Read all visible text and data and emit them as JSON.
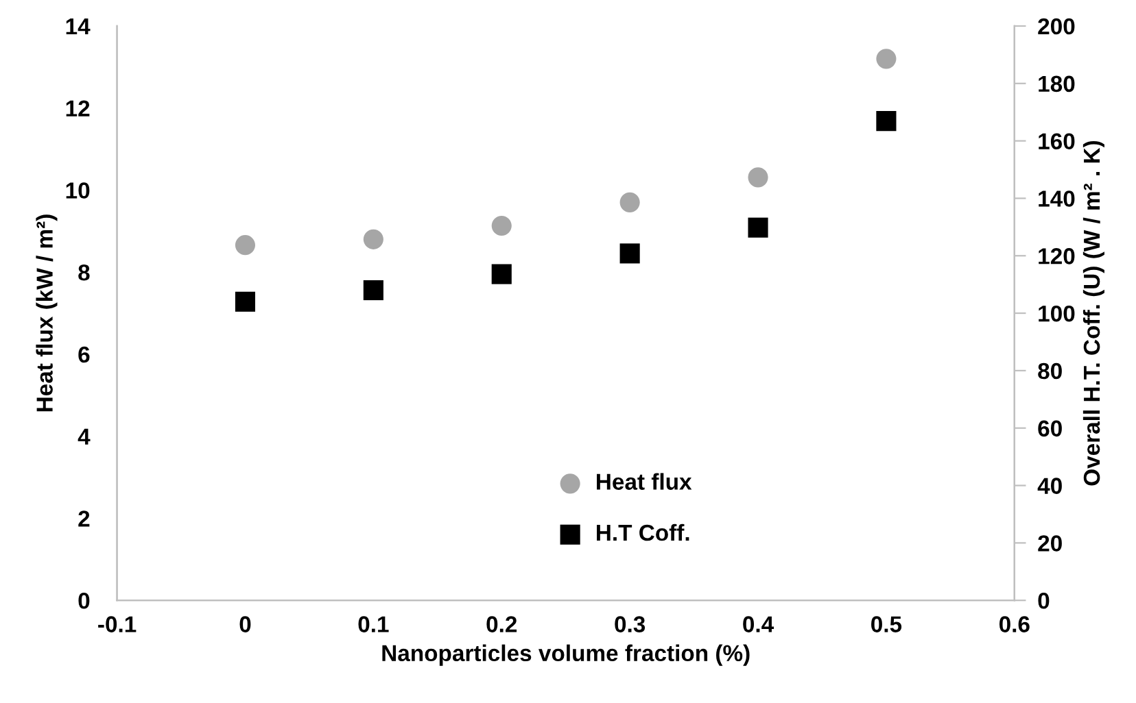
{
  "chart_data": {
    "type": "scatter",
    "xlabel": "Nanoparticles volume fraction (%)",
    "ylabel": "Heat flux (kW / m²)",
    "y2label": "Overall H.T. Coff. (U) (W / m² . K)",
    "x": [
      0,
      0.1,
      0.2,
      0.3,
      0.4,
      0.5
    ],
    "series": [
      {
        "name": "Heat flux",
        "color": "#a6a6a6",
        "marker": "circle",
        "values": [
          8.66,
          8.8,
          9.13,
          9.7,
          10.31,
          13.2
        ]
      },
      {
        "name": "H.T Coff.",
        "color": "#000000",
        "marker": "square",
        "axis": "y2",
        "values": [
          104,
          108,
          113.6,
          120.8,
          129.8,
          166.9
        ]
      }
    ],
    "xlim": [
      -0.1,
      0.6
    ],
    "xticks": [
      -0.1,
      0,
      0.1,
      0.2,
      0.3,
      0.4,
      0.5,
      0.6
    ],
    "ylim": [
      0,
      14
    ],
    "yticks": [
      0,
      2,
      4,
      6,
      8,
      10,
      12,
      14
    ],
    "y2lim": [
      0,
      200
    ],
    "y2ticks": [
      0,
      20,
      40,
      60,
      80,
      100,
      120,
      140,
      160,
      180,
      200
    ],
    "grid": false,
    "legend": "bottom"
  }
}
